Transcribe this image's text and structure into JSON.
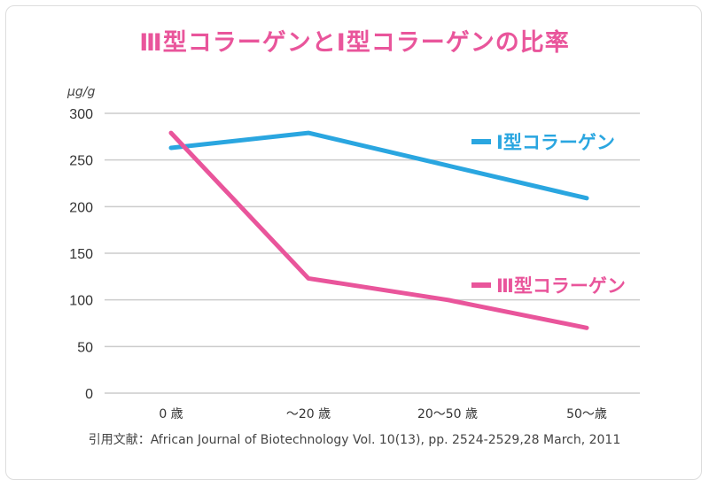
{
  "chart_data": {
    "type": "line",
    "title": "Ⅲ型コラーゲンとⅠ型コラーゲンの比率",
    "ylabel": "μg/g",
    "xlabel": "",
    "ylim": [
      0,
      300
    ],
    "yticks": [
      0,
      50,
      100,
      150,
      200,
      250,
      300
    ],
    "categories": [
      "0 歳",
      "～20 歳",
      "20～50 歳",
      "50～歳"
    ],
    "series": [
      {
        "name": "Ⅰ型コラーゲン",
        "color": "#2aa6e0",
        "values": [
          263,
          279,
          244,
          209
        ]
      },
      {
        "name": "Ⅲ型コラーゲン",
        "color": "#e9559b",
        "values": [
          279,
          123,
          100,
          70
        ]
      }
    ],
    "grid": true,
    "legend": "right",
    "source": "引用文献：African Journal of Biotechnology Vol. 10(13), pp. 2524-2529,28 March, 2011"
  }
}
